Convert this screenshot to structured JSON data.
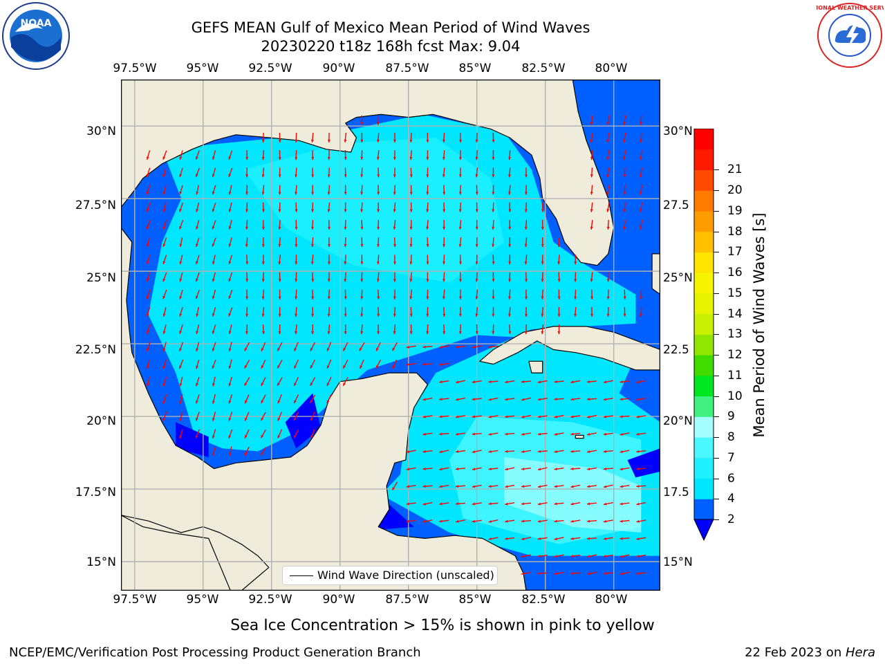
{
  "title": {
    "line1": "GEFS MEAN Gulf of Mexico Mean Period of Wind Waves",
    "line2": "20230220 t18z 168h fcst   Max: 9.04"
  },
  "map": {
    "lon_labels": [
      "97.5°W",
      "95°W",
      "92.5°W",
      "90°W",
      "87.5°W",
      "85°W",
      "82.5°W",
      "80°W"
    ],
    "lat_labels_left": [
      "30°N",
      "27.5°N",
      "25°N",
      "22.5°N",
      "20°N",
      "17.5°N",
      "15°N"
    ],
    "lat_labels_right": [
      "30°N",
      "27.5",
      "25°N",
      "22.5",
      "20°N",
      "17.5",
      "15°N"
    ],
    "lon_range": [
      -98,
      -78.3
    ],
    "lat_range": [
      14,
      31.6
    ],
    "colors": {
      "land": "#efecdb",
      "ocean_default": "#ffffff"
    }
  },
  "legend": {
    "label": "Wind Wave Direction (unscaled)"
  },
  "colorbar": {
    "label": "Mean Period of Wind Waves [s]",
    "ticks": [
      "2",
      "4",
      "6",
      "7",
      "8",
      "9",
      "10",
      "11",
      "12",
      "13",
      "14",
      "15",
      "16",
      "17",
      "18",
      "19",
      "20",
      "21"
    ],
    "bin_colors": [
      "#0060ff",
      "#00e6ff",
      "#1ef0ff",
      "#4cf8ff",
      "#a6ffff",
      "#40f080",
      "#00e620",
      "#40dc00",
      "#90e600",
      "#c8f000",
      "#e6f400",
      "#f8f400",
      "#ffe400",
      "#ffc000",
      "#ff9c00",
      "#ff7a00",
      "#ff4a00",
      "#ff1a00",
      "#ff0000"
    ],
    "under_color": "#0000ff"
  },
  "subtitle": "Sea Ice Concentration > 15% is shown in pink to yellow",
  "footer": {
    "left": "NCEP/EMC/Verification Post Processing Product Generation Branch",
    "date": "22 Feb 2023 on ",
    "site": "Hera"
  },
  "logos": {
    "left_text": "NOAA",
    "right_text": "NATIONAL WEATHER SERVICE"
  },
  "chart_data": {
    "type": "heatmap",
    "title": "GEFS MEAN Gulf of Mexico Mean Period of Wind Waves",
    "variable": "Mean Period of Wind Waves [s]",
    "max": 9.04,
    "field_description": "mostly 4-7 s across central Gulf and Caribbean; 2-4 s near coasts and Atlantic east of Florida; <2 s in small patches",
    "arrow_direction": "southward in northern Gulf, southwestward in western Gulf, westward in Caribbean",
    "colorbar_range": [
      2,
      21
    ]
  }
}
